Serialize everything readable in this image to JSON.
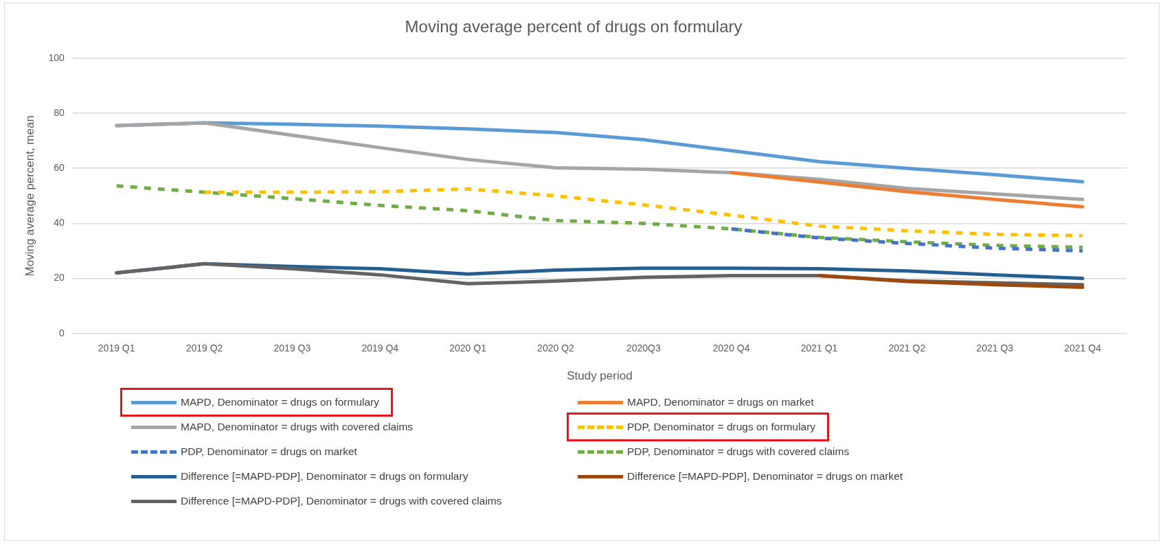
{
  "chart_data": {
    "type": "line",
    "title": "Moving average percent of drugs on formulary",
    "xlabel": "Study period",
    "ylabel": "Moving average percent, mean",
    "categories": [
      "2019 Q1",
      "2019 Q2",
      "2019 Q3",
      "2019 Q4",
      "2020 Q1",
      "2020 Q2",
      "2020Q3",
      "2020 Q4",
      "2021 Q1",
      "2021 Q2",
      "2021 Q3",
      "2021 Q4"
    ],
    "series": [
      {
        "name": "MAPD, Denominator = drugs on formulary",
        "color": "#5b9bd5",
        "values": [
          75.5,
          76.5,
          76,
          75.3,
          74.3,
          73,
          70.4,
          66.4,
          62.4,
          60,
          57.7,
          55.1
        ]
      },
      {
        "name": "MAPD, Denominator = drugs on market",
        "color": "#ed7d31",
        "values": [
          null,
          null,
          null,
          null,
          null,
          null,
          null,
          58.4,
          55,
          51.5,
          48.7,
          46
        ]
      },
      {
        "name": "MAPD, Denominator = drugs with covered claims",
        "color": "#a5a5a5",
        "values": [
          75.5,
          76.5,
          72,
          67.5,
          63.2,
          60.2,
          59.7,
          58.4,
          56,
          52.7,
          50.7,
          48.7
        ]
      },
      {
        "name": "PDP, Denominator = drugs on formulary",
        "color": "#ffc000",
        "line_style": "dashed",
        "values": [
          null,
          51.3,
          51.3,
          51.5,
          52.5,
          50,
          46.7,
          43,
          39,
          37.3,
          36,
          35.5
        ]
      },
      {
        "name": "PDP, Denominator = drugs on market",
        "color": "#4472c4",
        "line_style": "dashed",
        "values": [
          null,
          null,
          null,
          null,
          null,
          null,
          null,
          38,
          34.7,
          32.7,
          31,
          30
        ]
      },
      {
        "name": "PDP, Denominator = drugs with covered claims",
        "color": "#70ad47",
        "line_style": "dashed",
        "values": [
          53.6,
          51.3,
          49,
          46.5,
          44.6,
          41,
          40,
          38,
          34.9,
          33.3,
          32,
          31.3
        ]
      },
      {
        "name": "Difference [=MAPD-PDP], Denominator = drugs on formulary",
        "color": "#255e91",
        "values": [
          22,
          25.3,
          24.3,
          23.5,
          21.6,
          23,
          23.7,
          23.7,
          23.5,
          22.7,
          21.3,
          20
        ]
      },
      {
        "name": "Difference [=MAPD-PDP], Denominator = drugs on market",
        "color": "#9e480e",
        "values": [
          null,
          null,
          null,
          null,
          null,
          null,
          null,
          null,
          21,
          18.9,
          17.7,
          16.8
        ]
      },
      {
        "name": "Difference [=MAPD-PDP], Denominator = drugs with covered claims",
        "color": "#636363",
        "values": [
          22,
          25.3,
          23.5,
          21.3,
          18.1,
          19,
          20.4,
          21,
          21,
          19.1,
          18.4,
          17.7
        ]
      }
    ],
    "ylim": [
      0,
      100
    ],
    "yticks": [
      0,
      20,
      40,
      60,
      80,
      100
    ],
    "grid": "y",
    "legend": "bottom",
    "marker": "none",
    "line_style": "solid"
  }
}
